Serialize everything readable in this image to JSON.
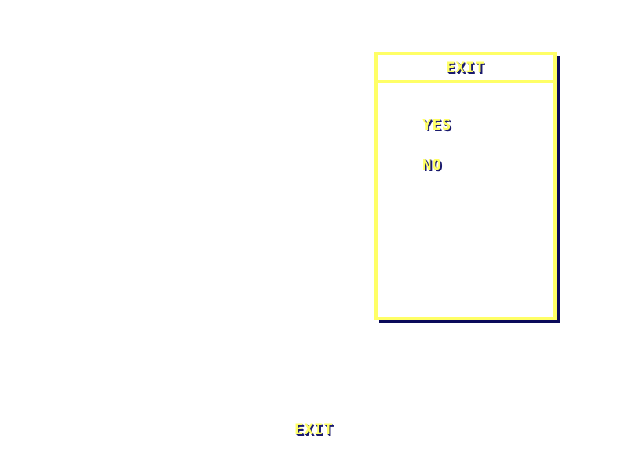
{
  "dialog": {
    "title": "EXIT",
    "options": [
      {
        "label": "YES"
      },
      {
        "label": "NO"
      }
    ]
  },
  "footer": {
    "label": "EXIT"
  },
  "colors": {
    "text": "#ffff66",
    "text_shadow": "#1a1a6e",
    "border": "#ffff66",
    "dialog_shadow": "#0a0a5a",
    "background": "#ffffff"
  }
}
